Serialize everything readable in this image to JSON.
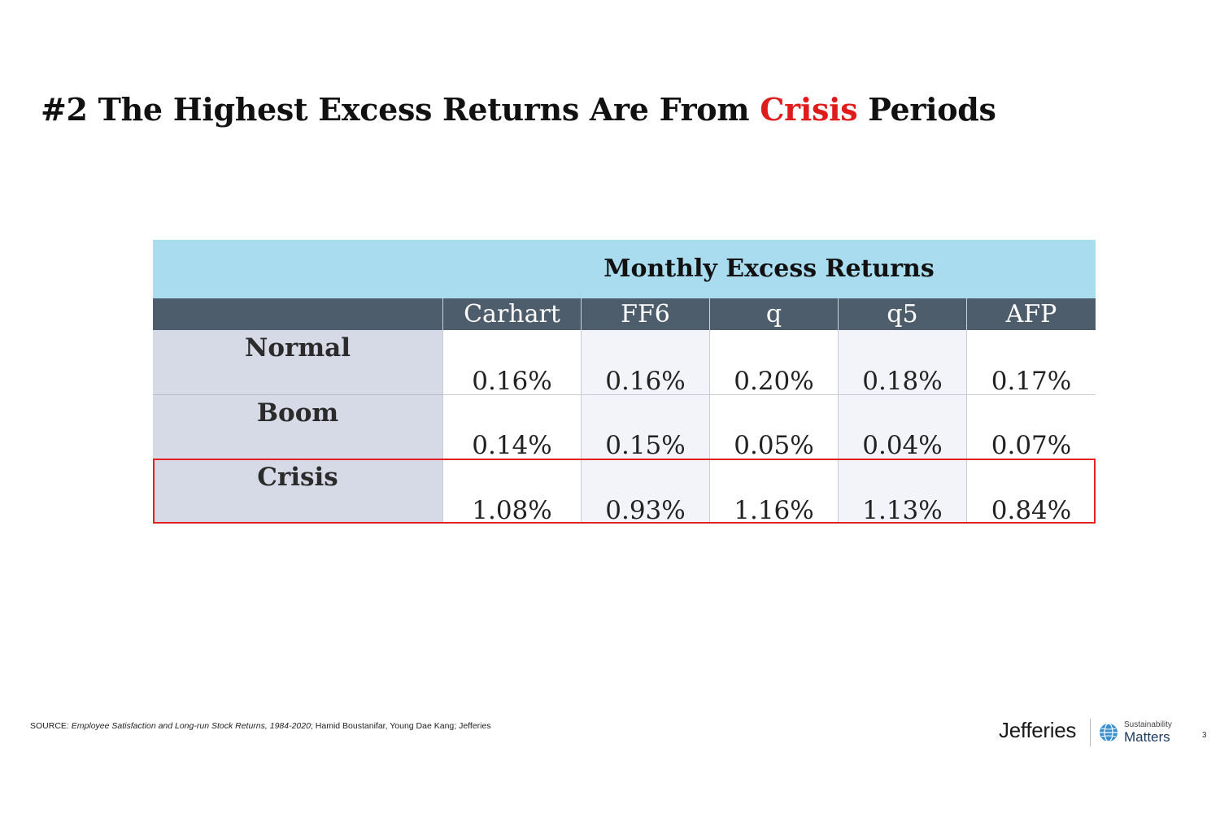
{
  "slide": {
    "title_before": "#2 The Highest Excess Returns Are From ",
    "title_highlight": "Crisis",
    "title_after": " Periods",
    "highlight_color": "#e01b1b"
  },
  "table": {
    "super_header": "Monthly Excess Returns",
    "columns": [
      "Carhart",
      "FF6",
      "q",
      "q5",
      "AFP"
    ],
    "rows": [
      {
        "label": "Normal",
        "values": [
          "0.16%",
          "0.16%",
          "0.20%",
          "0.18%",
          "0.17%"
        ]
      },
      {
        "label": "Boom",
        "values": [
          "0.14%",
          "0.15%",
          "0.05%",
          "0.04%",
          "0.07%"
        ]
      },
      {
        "label": "Crisis",
        "values": [
          "1.08%",
          "0.93%",
          "1.16%",
          "1.13%",
          "0.84%"
        ]
      }
    ],
    "highlighted_row": "Crisis",
    "highlight_border_color": "#e32222",
    "header_bg": "#a9dcef",
    "column_header_bg": "#4e5d6b"
  },
  "footer": {
    "source_prefix": "SOURCE: ",
    "source_title": "Employee Satisfaction and Long-run Stock Returns, 1984-2020",
    "source_rest": "; Hamid Boustanifar, Young Dae Kang; Jefferies",
    "brand": "Jefferies",
    "badge_small": "Sustainability",
    "badge_big": "Matters",
    "badge_icon": "globe-icon",
    "page_number": "3"
  }
}
